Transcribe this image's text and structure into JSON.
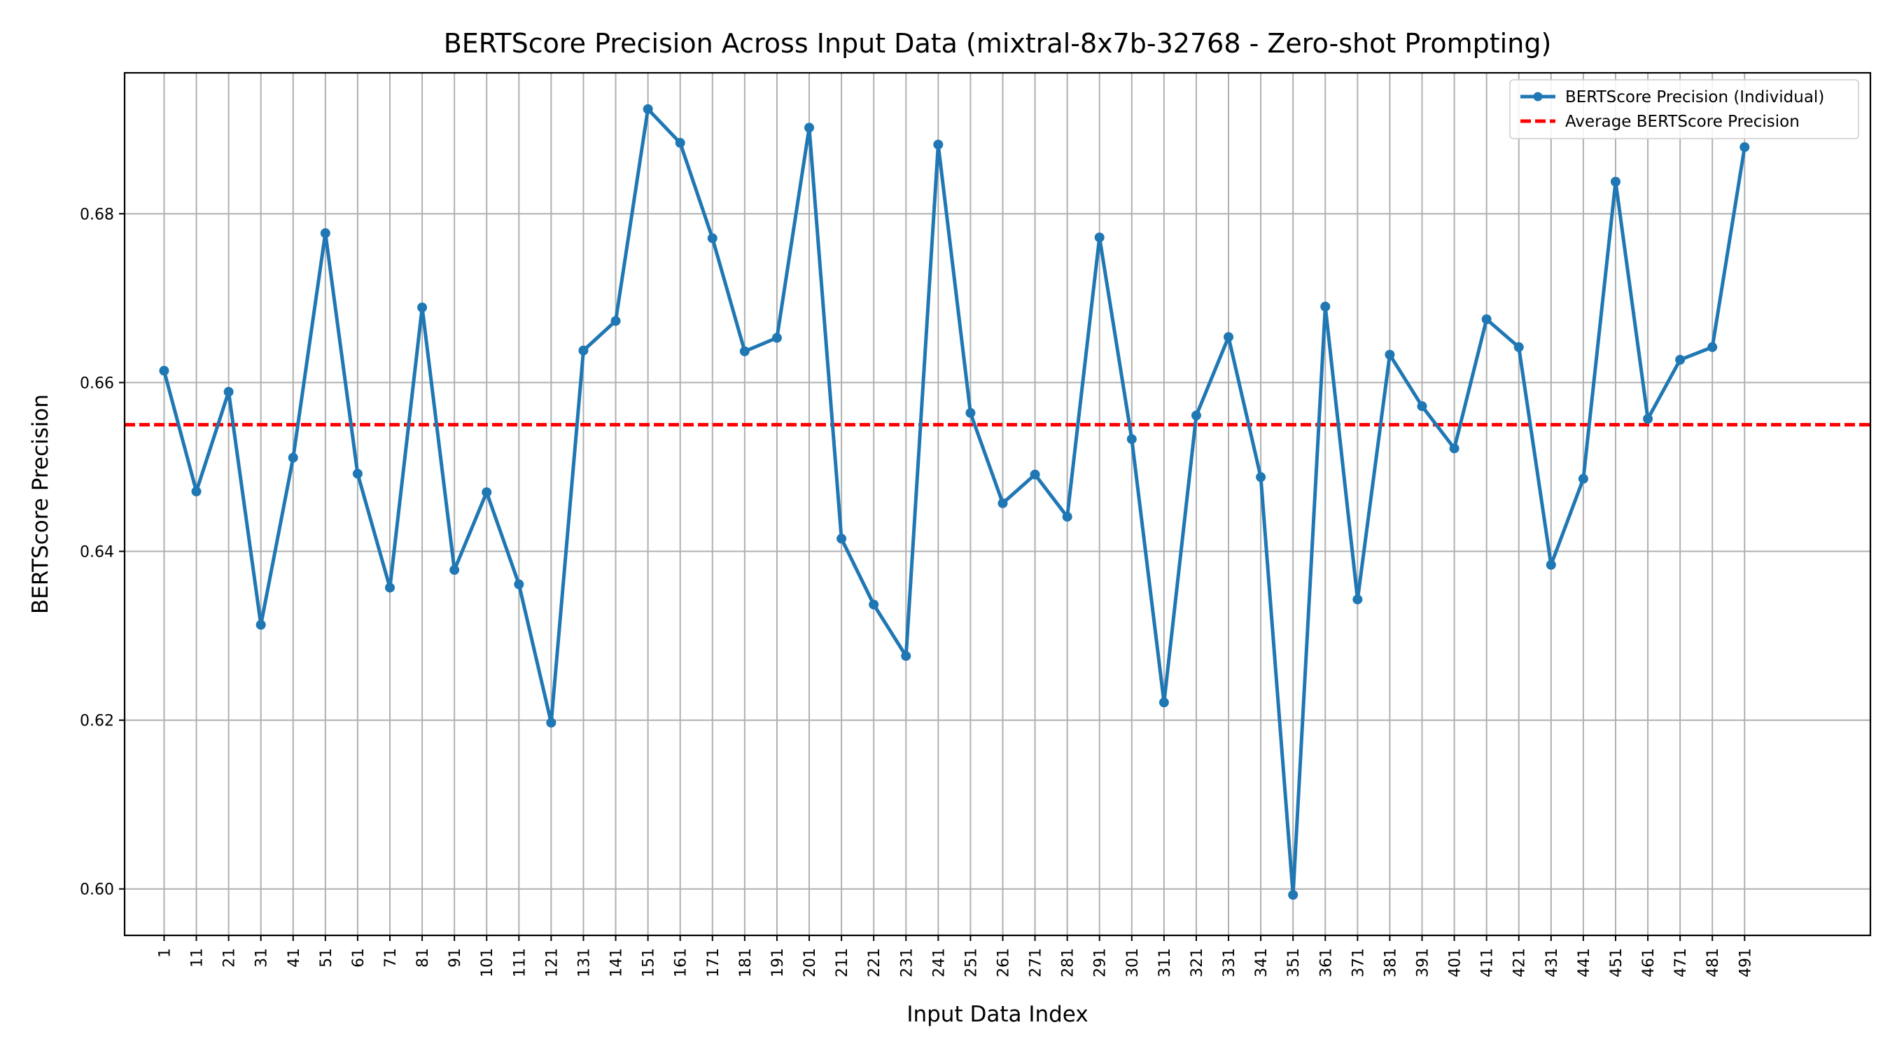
{
  "chart_data": {
    "type": "line",
    "title": "BERTScore Precision Across Input Data (mixtral-8x7b-32768 - Zero-shot Prompting)",
    "xlabel": "Input Data Index",
    "ylabel": "BERTScore Precision",
    "x": [
      1,
      11,
      21,
      31,
      41,
      51,
      61,
      71,
      81,
      91,
      101,
      111,
      121,
      131,
      141,
      151,
      161,
      171,
      181,
      191,
      201,
      211,
      221,
      231,
      241,
      251,
      261,
      271,
      281,
      291,
      301,
      311,
      321,
      331,
      341,
      351,
      361,
      371,
      381,
      391,
      401,
      411,
      421,
      431,
      441,
      451,
      461,
      471,
      481,
      491
    ],
    "x_tick_labels": [
      "1",
      "11",
      "21",
      "31",
      "41",
      "51",
      "61",
      "71",
      "81",
      "91",
      "101",
      "111",
      "121",
      "131",
      "141",
      "151",
      "161",
      "171",
      "181",
      "191",
      "201",
      "211",
      "221",
      "231",
      "241",
      "251",
      "261",
      "271",
      "281",
      "291",
      "301",
      "311",
      "321",
      "331",
      "341",
      "351",
      "361",
      "371",
      "381",
      "391",
      "401",
      "411",
      "421",
      "431",
      "441",
      "451",
      "461",
      "471",
      "481",
      "491"
    ],
    "series": [
      {
        "name": "BERTScore Precision (Individual)",
        "color": "#1f77b4",
        "style": "solid-with-markers",
        "values": [
          0.6614,
          0.6471,
          0.6589,
          0.6313,
          0.6511,
          0.6777,
          0.6492,
          0.6357,
          0.6689,
          0.6378,
          0.647,
          0.6361,
          0.6197,
          0.6638,
          0.6673,
          0.6924,
          0.6884,
          0.6771,
          0.6637,
          0.6653,
          0.6902,
          0.6415,
          0.6337,
          0.6276,
          0.6882,
          0.6564,
          0.6457,
          0.6491,
          0.6441,
          0.6772,
          0.6533,
          0.6221,
          0.6561,
          0.6654,
          0.6488,
          0.5993,
          0.669,
          0.6343,
          0.6633,
          0.6572,
          0.6522,
          0.6675,
          0.6642,
          0.6384,
          0.6486,
          0.6838,
          0.6557,
          0.6627,
          0.6642,
          0.6879
        ]
      },
      {
        "name": "Average BERTScore Precision",
        "color": "#ff0000",
        "style": "dashed",
        "value": 0.655
      }
    ],
    "y_ticks": [
      0.6,
      0.62,
      0.64,
      0.66,
      0.68
    ],
    "y_tick_labels": [
      "0.60",
      "0.62",
      "0.64",
      "0.66",
      "0.68"
    ],
    "xlim": [
      -11.25,
      530
    ],
    "ylim": [
      0.5945,
      0.6967
    ],
    "grid": true,
    "legend_position": "top-right",
    "x_tick_rotation": "vertical"
  }
}
